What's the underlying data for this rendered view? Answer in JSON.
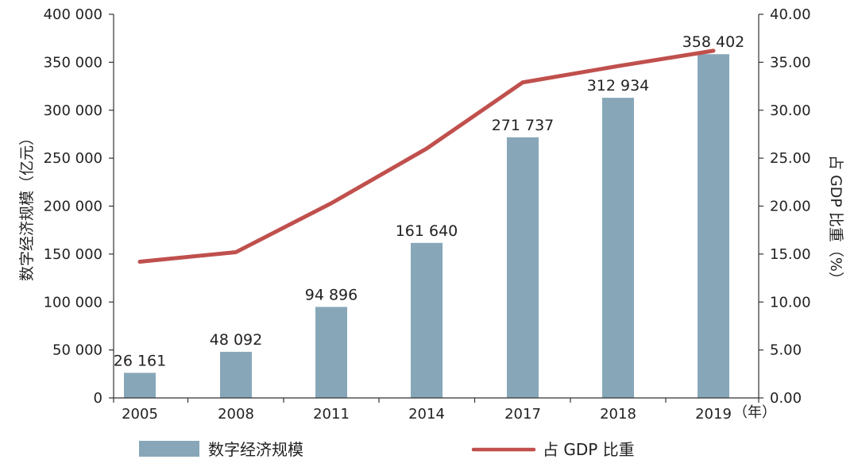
{
  "chart_data": {
    "type": "bar",
    "categories": [
      "2005",
      "2008",
      "2011",
      "2014",
      "2017",
      "2018",
      "2019"
    ],
    "x_unit": "（年）",
    "series": [
      {
        "name": "数字经济规模",
        "kind": "bar",
        "axis": "left",
        "color": "#87a7b9",
        "values": [
          26161,
          48092,
          94896,
          161640,
          271737,
          312934,
          358402
        ],
        "labels": [
          "26 161",
          "48 092",
          "94 896",
          "161 640",
          "271 737",
          "312 934",
          "358 402"
        ]
      },
      {
        "name": "占 GDP 比重",
        "kind": "line",
        "axis": "right",
        "color": "#c0504d",
        "values": [
          14.2,
          15.2,
          20.3,
          26.0,
          32.9,
          34.6,
          36.2
        ]
      }
    ],
    "ylabel": "数字经济规模（亿元）",
    "y2label": "占 GDP 比重（%）",
    "ylim": [
      0,
      400000
    ],
    "y2lim": [
      0,
      40
    ],
    "yticks": [
      {
        "value": 0,
        "label": "0"
      },
      {
        "value": 50000,
        "label": "50 000"
      },
      {
        "value": 100000,
        "label": "100 000"
      },
      {
        "value": 150000,
        "label": "150 000"
      },
      {
        "value": 200000,
        "label": "200 000"
      },
      {
        "value": 250000,
        "label": "250 000"
      },
      {
        "value": 300000,
        "label": "300 000"
      },
      {
        "value": 350000,
        "label": "350 000"
      },
      {
        "value": 400000,
        "label": "400 000"
      }
    ],
    "y2ticks": [
      {
        "value": 0,
        "label": "0.00"
      },
      {
        "value": 5,
        "label": "5.00"
      },
      {
        "value": 10,
        "label": "10.00"
      },
      {
        "value": 15,
        "label": "15.00"
      },
      {
        "value": 20,
        "label": "20.00"
      },
      {
        "value": 25,
        "label": "25.00"
      },
      {
        "value": 30,
        "label": "30.00"
      },
      {
        "value": 35,
        "label": "35.00"
      },
      {
        "value": 40,
        "label": "40.00"
      }
    ],
    "grid": false,
    "legend": "bottom"
  },
  "legend": {
    "bar_label": "数字经济规模",
    "line_label": "占 GDP 比重"
  }
}
